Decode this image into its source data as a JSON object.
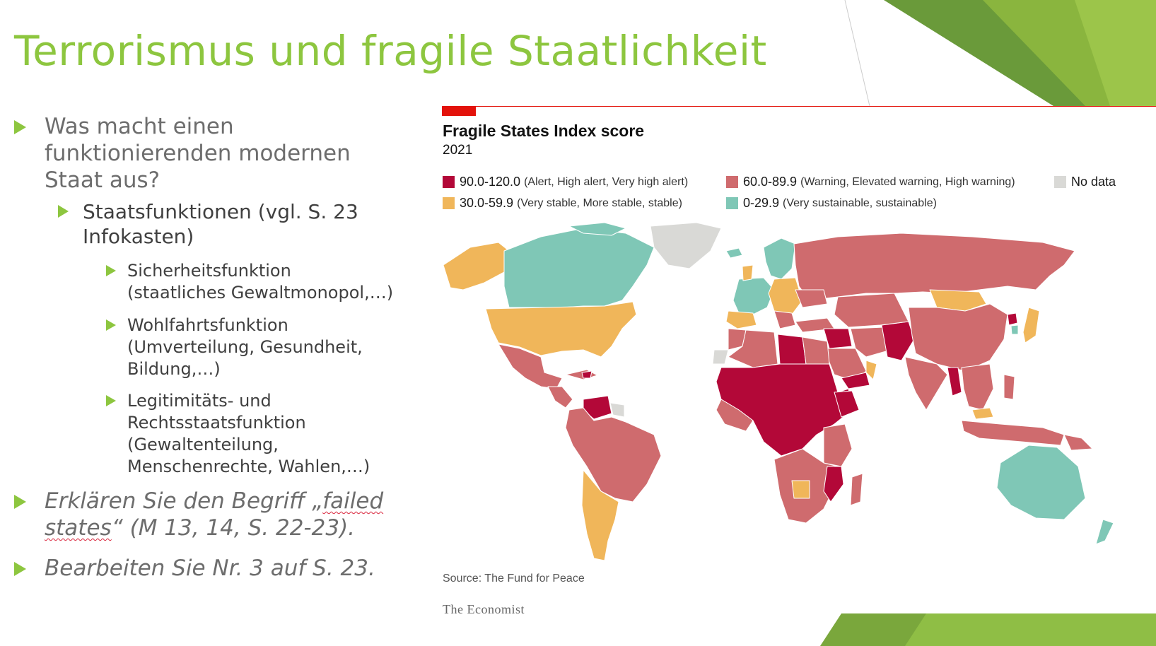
{
  "slide": {
    "title": "Terrorismus und fragile Staatlichkeit",
    "bullets": {
      "q1": [
        "Was macht einen",
        "funktionierenden modernen",
        "Staat aus?"
      ],
      "sub": [
        "Staatsfunktionen (vgl. S. 23",
        "Infokasten)"
      ],
      "f1": [
        "Sicherheitsfunktion",
        "(staatliches Gewaltmonopol,…)"
      ],
      "f2": [
        "Wohlfahrtsfunktion",
        "(Umverteilung, Gesundheit,",
        "Bildung,…)"
      ],
      "f3": [
        "Legitimitäts- und",
        "Rechtsstaatsfunktion",
        "(Gewaltenteilung,",
        "Menschenrechte, Wahlen,…)"
      ],
      "task1_a": "Erklären Sie den Begriff „",
      "task1_b": "failed",
      "task1_c": "states",
      "task1_d": "“ (M 13, 14, S. 22-23).",
      "task2": "Bearbeiten Sie Nr. 3 auf S. 23."
    }
  },
  "map": {
    "title": "Fragile States Index score",
    "year": "2021",
    "legend": [
      {
        "range": "90.0-120.0",
        "desc": "(Alert, High alert, Very high alert)",
        "color": "#b30838"
      },
      {
        "range": "60.0-89.9",
        "desc": "(Warning, Elevated warning, High warning)",
        "color": "#cf6b6e"
      },
      {
        "label": "No data",
        "color": "#d9d9d6"
      },
      {
        "range": "30.0-59.9",
        "desc": "(Very stable, More stable, stable)",
        "color": "#f0b65a"
      },
      {
        "range": "0-29.9",
        "desc": "(Very sustainable, sustainable)",
        "color": "#7fc7b6"
      }
    ],
    "source": "Source: The Fund for Peace",
    "publisher": "The Economist",
    "colors": {
      "alert": "#b30838",
      "warning": "#cf6b6e",
      "stable": "#f0b65a",
      "sustainable": "#7fc7b6",
      "nodata": "#d9d9d6"
    }
  }
}
